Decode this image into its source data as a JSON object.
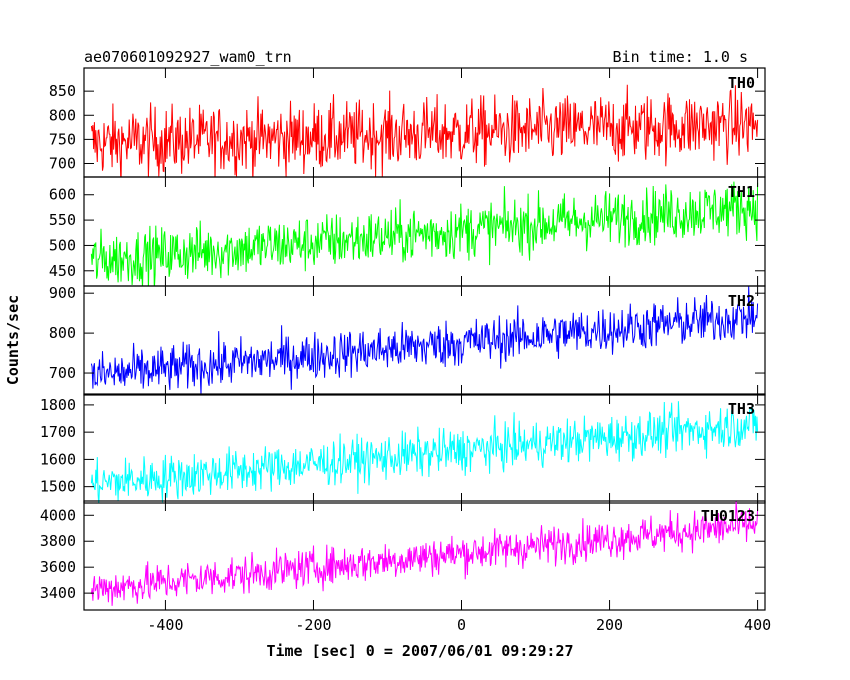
{
  "chart_data": {
    "type": "line",
    "title_left": "ae070601092927_wam0_trn",
    "title_right": "Bin time: 1.0 s",
    "xlabel": "Time [sec] 0 = 2007/06/01 09:29:27",
    "ylabel": "Counts/sec",
    "xlim": [
      -510,
      410
    ],
    "xticks": [
      -400,
      -200,
      0,
      200,
      400
    ],
    "grid": false,
    "panels": [
      {
        "name": "TH0",
        "color": "#ff0000",
        "ylim": [
          672,
          898
        ],
        "yticks": [
          700,
          750,
          800,
          850
        ],
        "start_level": 742,
        "end_level": 782,
        "noise": 36,
        "x_range": [
          -500,
          400
        ]
      },
      {
        "name": "TH1",
        "color": "#00ff00",
        "ylim": [
          420,
          635
        ],
        "yticks": [
          450,
          500,
          550,
          600
        ],
        "start_level": 470,
        "end_level": 577,
        "noise": 28,
        "x_range": [
          -500,
          400
        ]
      },
      {
        "name": "TH2",
        "color": "#0000ff",
        "ylim": [
          645,
          918
        ],
        "yticks": [
          700,
          800,
          900
        ],
        "start_level": 693,
        "end_level": 843,
        "noise": 30,
        "x_range": [
          -500,
          400
        ]
      },
      {
        "name": "TH3",
        "color": "#00ffff",
        "ylim": [
          1440,
          1840
        ],
        "yticks": [
          1500,
          1600,
          1700,
          1800
        ],
        "start_level": 1510,
        "end_level": 1730,
        "noise": 42,
        "x_range": [
          -500,
          400
        ]
      },
      {
        "name": "TH0123",
        "color": "#ff00ff",
        "ylim": [
          3270,
          4110
        ],
        "yticks": [
          3400,
          3600,
          3800,
          4000
        ],
        "start_level": 3430,
        "end_level": 3930,
        "noise": 75,
        "x_range": [
          -500,
          400
        ]
      }
    ]
  }
}
